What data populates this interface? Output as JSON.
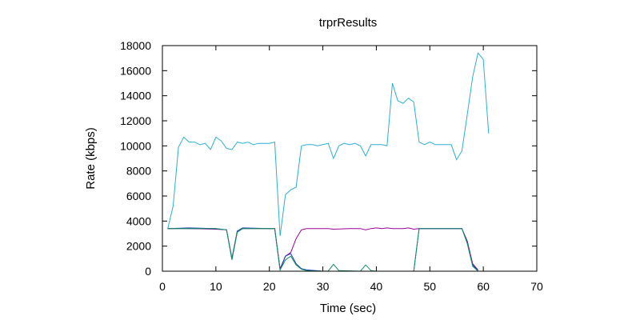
{
  "chart_data": {
    "type": "line",
    "title": "trprResults",
    "xlabel": "Time (sec)",
    "ylabel": "Rate (kbps)",
    "xlim": [
      0,
      70
    ],
    "ylim": [
      0,
      18000
    ],
    "xticks": [
      0,
      10,
      20,
      30,
      40,
      50,
      60,
      70
    ],
    "yticks": [
      0,
      2000,
      4000,
      6000,
      8000,
      10000,
      12000,
      14000,
      16000,
      18000
    ],
    "grid": false,
    "legend": "none",
    "series": [
      {
        "color": "#2bb0d0",
        "points": [
          [
            1,
            3400
          ],
          [
            2,
            5200
          ],
          [
            3,
            9900
          ],
          [
            4,
            10700
          ],
          [
            5,
            10300
          ],
          [
            6,
            10300
          ],
          [
            7,
            10100
          ],
          [
            8,
            10200
          ],
          [
            9,
            9700
          ],
          [
            10,
            10700
          ],
          [
            11,
            10400
          ],
          [
            12,
            9800
          ],
          [
            13,
            9700
          ],
          [
            14,
            10300
          ],
          [
            15,
            10200
          ],
          [
            16,
            10300
          ],
          [
            17,
            10100
          ],
          [
            18,
            10200
          ],
          [
            19,
            10200
          ],
          [
            20,
            10200
          ],
          [
            21,
            10300
          ],
          [
            22,
            2800
          ],
          [
            23,
            6100
          ],
          [
            24,
            6500
          ],
          [
            25,
            6700
          ],
          [
            26,
            10000
          ],
          [
            27,
            10100
          ],
          [
            28,
            10100
          ],
          [
            29,
            10000
          ],
          [
            30,
            10100
          ],
          [
            31,
            10200
          ],
          [
            32,
            9000
          ],
          [
            33,
            10000
          ],
          [
            34,
            10200
          ],
          [
            35,
            10100
          ],
          [
            36,
            10200
          ],
          [
            37,
            10000
          ],
          [
            38,
            9200
          ],
          [
            39,
            10100
          ],
          [
            40,
            10100
          ],
          [
            41,
            10100
          ],
          [
            42,
            10000
          ],
          [
            43,
            15000
          ],
          [
            44,
            13600
          ],
          [
            45,
            13400
          ],
          [
            46,
            13800
          ],
          [
            47,
            13500
          ],
          [
            48,
            10300
          ],
          [
            49,
            10100
          ],
          [
            50,
            10300
          ],
          [
            51,
            10100
          ],
          [
            52,
            10100
          ],
          [
            53,
            10100
          ],
          [
            54,
            10100
          ],
          [
            55,
            8900
          ],
          [
            56,
            9600
          ],
          [
            57,
            12500
          ],
          [
            58,
            15500
          ],
          [
            59,
            17400
          ],
          [
            60,
            16900
          ],
          [
            61,
            11000
          ]
        ]
      },
      {
        "color": "#9a009a",
        "points": [
          [
            1,
            3400
          ],
          [
            5,
            3400
          ],
          [
            10,
            3350
          ],
          [
            12,
            3300
          ],
          [
            13,
            1000
          ],
          [
            14,
            3200
          ],
          [
            15,
            3400
          ],
          [
            20,
            3400
          ],
          [
            21,
            3400
          ],
          [
            22,
            200
          ],
          [
            23,
            1200
          ],
          [
            24,
            1500
          ],
          [
            25,
            2600
          ],
          [
            26,
            3300
          ],
          [
            27,
            3400
          ],
          [
            31,
            3400
          ],
          [
            32,
            3350
          ],
          [
            35,
            3400
          ],
          [
            37,
            3400
          ],
          [
            38,
            3300
          ],
          [
            39,
            3400
          ],
          [
            40,
            3450
          ],
          [
            41,
            3400
          ],
          [
            42,
            3450
          ],
          [
            43,
            3400
          ],
          [
            45,
            3400
          ],
          [
            46,
            3450
          ],
          [
            47,
            3350
          ],
          [
            48,
            3400
          ],
          [
            52,
            3400
          ],
          [
            56,
            3400
          ],
          [
            57,
            2400
          ],
          [
            58,
            600
          ],
          [
            59,
            100
          ]
        ]
      },
      {
        "color": "#1a3fb0",
        "points": [
          [
            1,
            3400
          ],
          [
            5,
            3450
          ],
          [
            10,
            3400
          ],
          [
            12,
            3300
          ],
          [
            13,
            1000
          ],
          [
            14,
            3200
          ],
          [
            15,
            3450
          ],
          [
            20,
            3400
          ],
          [
            21,
            3400
          ],
          [
            22,
            100
          ],
          [
            23,
            1200
          ],
          [
            24,
            1400
          ],
          [
            25,
            600
          ],
          [
            26,
            200
          ],
          [
            27,
            100
          ],
          [
            30,
            0
          ],
          [
            47,
            0
          ],
          [
            48,
            3400
          ],
          [
            52,
            3400
          ],
          [
            56,
            3400
          ],
          [
            57,
            2300
          ],
          [
            58,
            500
          ],
          [
            59,
            50
          ]
        ]
      },
      {
        "color": "#109060",
        "points": [
          [
            1,
            3400
          ],
          [
            5,
            3400
          ],
          [
            10,
            3400
          ],
          [
            12,
            3300
          ],
          [
            13,
            900
          ],
          [
            14,
            3100
          ],
          [
            15,
            3400
          ],
          [
            20,
            3400
          ],
          [
            21,
            3400
          ],
          [
            22,
            100
          ],
          [
            23,
            900
          ],
          [
            24,
            1200
          ],
          [
            25,
            500
          ],
          [
            26,
            150
          ],
          [
            27,
            50
          ],
          [
            30,
            0
          ],
          [
            31,
            20
          ],
          [
            32,
            550
          ],
          [
            33,
            50
          ],
          [
            37,
            0
          ],
          [
            38,
            500
          ],
          [
            39,
            50
          ],
          [
            40,
            0
          ],
          [
            47,
            0
          ],
          [
            48,
            3400
          ],
          [
            52,
            3400
          ],
          [
            56,
            3400
          ],
          [
            57,
            2200
          ],
          [
            58,
            400
          ],
          [
            59,
            0
          ]
        ]
      }
    ]
  }
}
